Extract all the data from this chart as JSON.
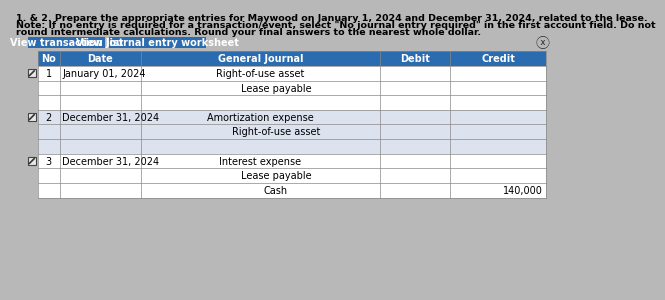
{
  "title_line1": "1. & 2. Prepare the appropriate entries for Maywood on January 1, 2024 and December 31, 2024, related to the lease.",
  "title_line2": "Note: If no entry is required for a transaction/event, select \"No journal entry required\" in the first account field. Do not",
  "title_line3": "round intermediate calculations. Round your final answers to the nearest whole dollar.",
  "btn1": "View transaction list",
  "btn2": "View journal entry worksheet",
  "col_headers": [
    "No",
    "Date",
    "General Journal",
    "Debit",
    "Credit"
  ],
  "rows": [
    {
      "no": "1",
      "date": "January 01, 2024",
      "journal": "Right-of-use asset",
      "debit": "",
      "credit": "",
      "indent": false,
      "group": 0
    },
    {
      "no": "",
      "date": "",
      "journal": "Lease payable",
      "debit": "",
      "credit": "",
      "indent": true,
      "group": 0
    },
    {
      "no": "",
      "date": "",
      "journal": "",
      "debit": "",
      "credit": "",
      "indent": false,
      "group": 0
    },
    {
      "no": "2",
      "date": "December 31, 2024",
      "journal": "Amortization expense",
      "debit": "",
      "credit": "",
      "indent": false,
      "group": 1
    },
    {
      "no": "",
      "date": "",
      "journal": "Right-of-use asset",
      "debit": "",
      "credit": "",
      "indent": true,
      "group": 1
    },
    {
      "no": "",
      "date": "",
      "journal": "",
      "debit": "",
      "credit": "",
      "indent": false,
      "group": 1
    },
    {
      "no": "3",
      "date": "December 31, 2024",
      "journal": "Interest expense",
      "debit": "",
      "credit": "",
      "indent": false,
      "group": 2
    },
    {
      "no": "",
      "date": "",
      "journal": "Lease payable",
      "debit": "",
      "credit": "",
      "indent": true,
      "group": 2
    },
    {
      "no": "",
      "date": "",
      "journal": "Cash",
      "debit": "",
      "credit": "140,000",
      "indent": true,
      "group": 2
    }
  ],
  "group_colors": [
    "#ffffff",
    "#dce3ef",
    "#ffffff"
  ],
  "header_bg": "#2b6cb0",
  "header_fg": "#ffffff",
  "btn_bg": "#2b6cb0",
  "btn_fg": "#ffffff",
  "border_color": "#888888",
  "bg_color": "#b8b8b8",
  "text_color": "#000000",
  "font_size_title": 6.8,
  "font_size_table": 7.0,
  "font_size_btn": 7.0
}
